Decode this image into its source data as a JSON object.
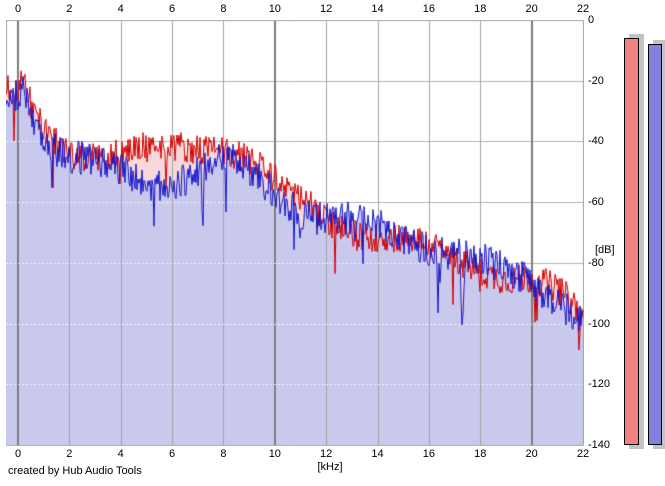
{
  "credit": "created by Hub Audio Tools",
  "axes": {
    "x": {
      "unit_label": "[kHz]",
      "min": 0,
      "max": 22,
      "ticks": [
        0,
        2,
        4,
        6,
        8,
        10,
        12,
        14,
        16,
        18,
        20,
        22
      ],
      "major_gridlines_khz": [
        0,
        10,
        20
      ]
    },
    "y": {
      "unit_label": "[dB]",
      "min": -140,
      "max": 0,
      "ticks": [
        0,
        -20,
        -40,
        -60,
        -80,
        -100,
        -120,
        -140
      ]
    }
  },
  "colors": {
    "background": "#ffffff",
    "grid_minor": "#a3a3a3",
    "grid_major": "#7d7d7d",
    "grid_horizontal": "#b3b3b3",
    "plot_border": "#a8a8a8",
    "text": "#000000"
  },
  "chart_data": {
    "type": "line",
    "title": "",
    "xlabel": "[kHz]",
    "ylabel": "[dB]",
    "xlim": [
      0,
      22
    ],
    "ylim": [
      -140,
      0
    ],
    "grid": true,
    "legend": null,
    "description": "Two overlaid audio spectrum traces (red and blue) with filled areas, jagged noise of about +/-5 dB around the envelopes below",
    "series": [
      {
        "name": "spectrum-red",
        "color": "#d40000",
        "fill_color": "#f7d9da",
        "envelope_x_khz": [
          0,
          1,
          2,
          3,
          4,
          5,
          6,
          7,
          8,
          9,
          10,
          11,
          12,
          13,
          14,
          15,
          16,
          17,
          18,
          19,
          20,
          21,
          22
        ],
        "envelope_y_db": [
          -24,
          -35,
          -41,
          -42,
          -43,
          -44,
          -43,
          -42,
          -42,
          -47,
          -56,
          -62,
          -67,
          -70,
          -72,
          -74,
          -76,
          -78,
          -80,
          -83,
          -85,
          -89,
          -95
        ],
        "noise_amplitude_db": 5,
        "peak": {
          "khz": 0.25,
          "boost_db": 6
        },
        "notable_dips": [
          {
            "khz": 21.85,
            "db": -110
          }
        ],
        "seed": 987654
      },
      {
        "name": "spectrum-blue",
        "color": "#1616cc",
        "fill_color": "#c9c9ee",
        "envelope_x_khz": [
          0,
          1,
          2,
          3,
          4,
          5,
          6,
          7,
          8,
          9,
          10,
          11,
          12,
          13,
          14,
          15,
          16,
          17,
          18,
          19,
          20,
          21,
          22
        ],
        "envelope_y_db": [
          -23,
          -37,
          -44,
          -47,
          -49,
          -51,
          -51,
          -50,
          -46,
          -51,
          -57,
          -63,
          -67,
          -69,
          -71,
          -73,
          -75,
          -77,
          -81,
          -84,
          -86,
          -90,
          -96
        ],
        "noise_amplitude_db": 5.5,
        "peak": {
          "khz": 0.25,
          "boost_db": 6
        },
        "notable_dips": [
          {
            "khz": 17.3,
            "db": -103
          }
        ],
        "seed": 24601
      }
    ]
  },
  "meters": {
    "range_db": [
      -140,
      0
    ],
    "shadow_color": "#c3c3c3",
    "bars": [
      {
        "name": "meter-red",
        "color": "#f28383",
        "value_db": -6
      },
      {
        "name": "meter-blue",
        "color": "#8181e2",
        "value_db": -8
      }
    ]
  }
}
